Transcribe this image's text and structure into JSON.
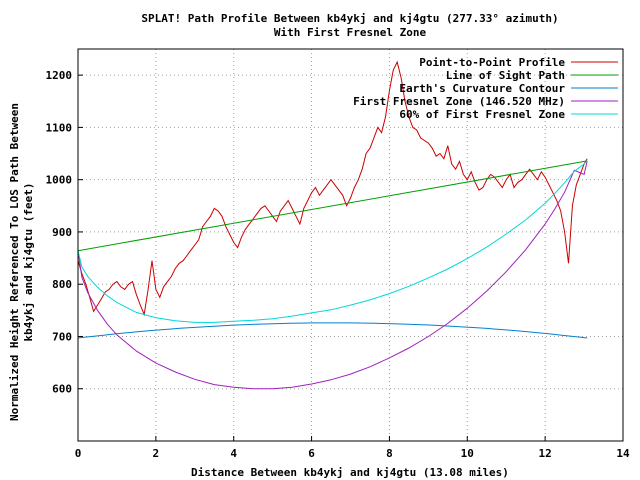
{
  "chart_data": {
    "type": "line",
    "title": "SPLAT! Path Profile Between kb4ykj and kj4gtu (277.33° azimuth)",
    "subtitle": "With First Fresnel Zone",
    "xlabel": "Distance Between kb4ykj and kj4gtu (13.08 miles)",
    "ylabel_line1": "Normalized Height Referenced To LOS Path Between",
    "ylabel_line2": "kb4ykj and kj4gtu (feet)",
    "xlim": [
      0,
      14
    ],
    "ylim": [
      500,
      1250
    ],
    "xticks": [
      0,
      2,
      4,
      6,
      8,
      10,
      12,
      14
    ],
    "yticks": [
      600,
      700,
      800,
      900,
      1000,
      1100,
      1200
    ],
    "grid": true,
    "legend_position": "top-right",
    "series": [
      {
        "name": "Point-to-Point Profile",
        "color": "#cc0000",
        "x": [
          0,
          0.1,
          0.2,
          0.3,
          0.4,
          0.5,
          0.6,
          0.7,
          0.8,
          0.9,
          1.0,
          1.1,
          1.2,
          1.3,
          1.4,
          1.5,
          1.6,
          1.7,
          1.8,
          1.9,
          2.0,
          2.1,
          2.2,
          2.3,
          2.4,
          2.5,
          2.6,
          2.7,
          2.8,
          2.9,
          3.0,
          3.1,
          3.2,
          3.3,
          3.4,
          3.5,
          3.6,
          3.7,
          3.8,
          3.9,
          4.0,
          4.1,
          4.2,
          4.3,
          4.4,
          4.5,
          4.6,
          4.7,
          4.8,
          4.9,
          5.0,
          5.1,
          5.2,
          5.3,
          5.4,
          5.5,
          5.6,
          5.7,
          5.8,
          5.9,
          6.0,
          6.1,
          6.2,
          6.3,
          6.4,
          6.5,
          6.6,
          6.7,
          6.8,
          6.9,
          7.0,
          7.1,
          7.2,
          7.3,
          7.4,
          7.5,
          7.6,
          7.7,
          7.8,
          7.9,
          8.0,
          8.1,
          8.2,
          8.3,
          8.4,
          8.5,
          8.6,
          8.7,
          8.8,
          8.9,
          9.0,
          9.1,
          9.2,
          9.3,
          9.4,
          9.5,
          9.6,
          9.7,
          9.8,
          9.9,
          10.0,
          10.1,
          10.2,
          10.3,
          10.4,
          10.5,
          10.6,
          10.7,
          10.8,
          10.9,
          11.0,
          11.1,
          11.2,
          11.3,
          11.4,
          11.5,
          11.6,
          11.7,
          11.8,
          11.9,
          12.0,
          12.1,
          12.2,
          12.3,
          12.4,
          12.5,
          12.6,
          12.7,
          12.8,
          12.9,
          13.0,
          13.08
        ],
        "y": [
          845,
          820,
          800,
          775,
          748,
          760,
          772,
          785,
          790,
          800,
          805,
          795,
          790,
          800,
          805,
          780,
          760,
          742,
          790,
          845,
          790,
          775,
          795,
          805,
          815,
          830,
          840,
          845,
          855,
          865,
          875,
          885,
          910,
          920,
          930,
          945,
          940,
          930,
          910,
          895,
          880,
          870,
          890,
          905,
          915,
          925,
          935,
          945,
          950,
          940,
          930,
          920,
          940,
          950,
          960,
          945,
          930,
          915,
          945,
          960,
          975,
          985,
          970,
          980,
          990,
          1000,
          990,
          980,
          970,
          950,
          965,
          985,
          1000,
          1020,
          1050,
          1060,
          1080,
          1100,
          1090,
          1120,
          1170,
          1210,
          1225,
          1195,
          1150,
          1120,
          1100,
          1095,
          1080,
          1075,
          1070,
          1060,
          1045,
          1050,
          1040,
          1065,
          1030,
          1020,
          1035,
          1010,
          1000,
          1015,
          995,
          980,
          985,
          1000,
          1010,
          1005,
          995,
          985,
          1000,
          1010,
          985,
          995,
          1000,
          1010,
          1020,
          1010,
          1000,
          1015,
          1005,
          990,
          975,
          960,
          940,
          900,
          840,
          950,
          990,
          1010,
          1030,
          1040
        ]
      },
      {
        "name": "Line of Sight Path",
        "color": "#00a000",
        "x": [
          0,
          13.08
        ],
        "y": [
          864,
          1036
        ]
      },
      {
        "name": "Earth's Curvature Contour",
        "color": "#0080d0",
        "x": [
          0,
          6.54,
          13.08
        ],
        "y": [
          697,
          726,
          697
        ]
      },
      {
        "name": "First Fresnel Zone (146.520 MHz)",
        "color": "#a020c0",
        "x": [
          0,
          0.1,
          0.25,
          0.5,
          0.75,
          1.0,
          1.5,
          2.0,
          2.5,
          3.0,
          3.5,
          4.0,
          4.5,
          5.0,
          5.5,
          6.0,
          6.5,
          7.0,
          7.5,
          8.0,
          8.5,
          9.0,
          9.5,
          10.0,
          10.5,
          11.0,
          11.5,
          12.0,
          12.25,
          12.5,
          12.75,
          13.0,
          13.08
        ],
        "y": [
          864,
          813,
          784,
          750,
          724,
          703,
          672,
          649,
          632,
          618,
          608,
          603,
          600,
          600,
          603,
          609,
          617,
          628,
          642,
          659,
          678,
          700,
          725,
          754,
          787,
          824,
          866,
          915,
          944,
          976,
          1018,
          1010,
          1036
        ]
      },
      {
        "name": "60% of First Fresnel Zone",
        "color": "#00d8d8",
        "x": [
          0,
          0.1,
          0.25,
          0.5,
          0.75,
          1.0,
          1.5,
          2.0,
          2.5,
          3.0,
          3.5,
          4.0,
          4.5,
          5.0,
          5.5,
          6.0,
          6.5,
          7.0,
          7.5,
          8.0,
          8.5,
          9.0,
          9.5,
          10.0,
          10.5,
          11.0,
          11.5,
          12.0,
          12.25,
          12.5,
          12.75,
          13.0,
          13.08
        ],
        "y": [
          864,
          833,
          815,
          794,
          778,
          765,
          746,
          736,
          730,
          727,
          727,
          729,
          731,
          734,
          739,
          745,
          751,
          760,
          770,
          782,
          796,
          812,
          829,
          849,
          871,
          896,
          923,
          955,
          974,
          994,
          1016,
          1030,
          1036
        ]
      }
    ]
  }
}
